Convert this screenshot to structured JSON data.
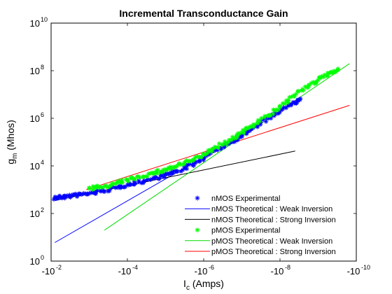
{
  "chart_data": {
    "type": "scatter",
    "title": "Incremental Transconductance Gain",
    "xlabel": {
      "main": "I",
      "sub": "c",
      "rest": " (Amps)"
    },
    "ylabel": {
      "main": "g",
      "sub": "m",
      "rest": " (Mhos)"
    },
    "x_scale": "log (decreasing magnitude, negative currents)",
    "y_scale": "log",
    "xlim": [
      -0.01,
      -1e-10
    ],
    "ylim": [
      1,
      10000000000.0
    ],
    "x_ticks": [
      {
        "value": -0.01,
        "base": "-10",
        "exp": "-2"
      },
      {
        "value": -0.0001,
        "base": "-10",
        "exp": "-4"
      },
      {
        "value": -1e-06,
        "base": "-10",
        "exp": "-6"
      },
      {
        "value": -1e-08,
        "base": "-10",
        "exp": "-8"
      },
      {
        "value": -1e-10,
        "base": "-10",
        "exp": "-10"
      }
    ],
    "y_ticks": [
      {
        "value": 1,
        "base": "10",
        "exp": "0"
      },
      {
        "value": 100,
        "base": "10",
        "exp": "2"
      },
      {
        "value": 10000,
        "base": "10",
        "exp": "4"
      },
      {
        "value": 1000000,
        "base": "10",
        "exp": "6"
      },
      {
        "value": 100000000,
        "base": "10",
        "exp": "8"
      },
      {
        "value": 10000000000,
        "base": "10",
        "exp": "10"
      }
    ],
    "grid": false,
    "legend_position": "bottom-right",
    "series": [
      {
        "name": "nMOS Experimental",
        "style": "markers",
        "marker": "asterisk",
        "color": "#0000ff",
        "x": [
          -0.008,
          -0.006,
          -0.004,
          -0.002,
          -0.001,
          -0.0005,
          -0.0002,
          -0.0001,
          -5e-05,
          -2e-05,
          -1e-05,
          -5e-06,
          -2e-06,
          -1e-06,
          -5e-07,
          -2e-07,
          -1e-07,
          -5e-08,
          -2e-08,
          -1e-08,
          -5e-09,
          -3e-09
        ],
        "y": [
          450,
          480,
          520,
          600,
          700,
          850,
          1200,
          1600,
          2100,
          3000,
          4200,
          6000,
          11000,
          22000,
          45000,
          100000,
          200000,
          400000,
          1000000,
          2000000,
          4000000,
          6000000
        ]
      },
      {
        "name": "nMOS Theoretical : Weak Inversion",
        "style": "line",
        "color": "#0000ff",
        "x": [
          -0.008,
          -1.2e-06
        ],
        "y": [
          6,
          20000
        ]
      },
      {
        "name": "nMOS Theoretical : Strong Inversion",
        "style": "line",
        "color": "#000000",
        "x": [
          -0.008,
          -4e-09
        ],
        "y": [
          350,
          42000
        ]
      },
      {
        "name": "pMOS Experimental",
        "style": "markers",
        "marker": "asterisk",
        "color": "#00ff00",
        "x": [
          -0.001,
          -0.0005,
          -0.0002,
          -0.0001,
          -5e-05,
          -2e-05,
          -1e-05,
          -5e-06,
          -2e-06,
          -1e-06,
          -5e-07,
          -2e-07,
          -1e-07,
          -5e-08,
          -2e-08,
          -1e-08,
          -5e-09,
          -2e-09,
          -1e-09,
          -5e-10,
          -3e-10
        ],
        "y": [
          1100,
          1300,
          1800,
          2500,
          3500,
          5000,
          7000,
          10000,
          17000,
          30000,
          60000,
          120000,
          260000,
          550000,
          1300000,
          3000000,
          8000000,
          20000000,
          40000000,
          80000000,
          120000000
        ]
      },
      {
        "name": "pMOS Theoretical : Weak Inversion",
        "style": "line",
        "color": "#00dd00",
        "x": [
          -0.0004,
          -1.5e-10
        ],
        "y": [
          20,
          200000000
        ]
      },
      {
        "name": "pMOS Theoretical : Strong Inversion",
        "style": "line",
        "color": "#ff0000",
        "x": [
          -0.0012,
          -1.5e-10
        ],
        "y": [
          1000,
          3500000
        ]
      }
    ]
  }
}
